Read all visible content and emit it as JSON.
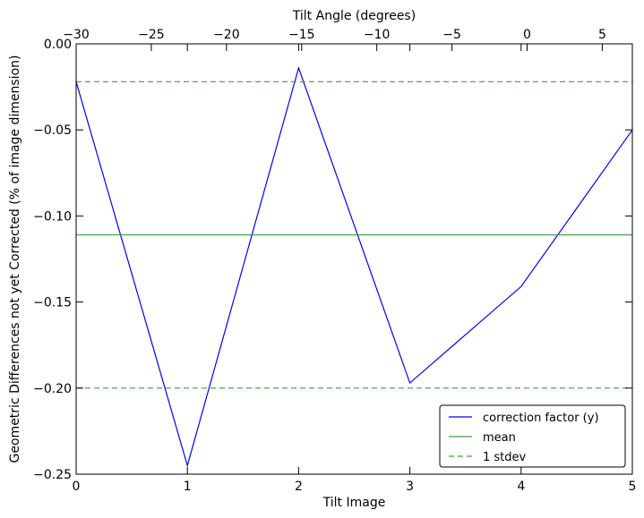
{
  "chart_data": {
    "type": "line",
    "title": "",
    "xlabel": "Tilt Image",
    "x2label": "Tilt Angle (degrees)",
    "ylabel": "Geometric Differences not yet Corrected (% of image dimension)",
    "xlim": [
      0,
      5
    ],
    "ylim": [
      -0.25,
      0.0
    ],
    "x2lim": [
      -30,
      7
    ],
    "xticks": [
      0,
      1,
      2,
      3,
      4,
      5
    ],
    "xtick_labels": [
      "0",
      "1",
      "2",
      "3",
      "4",
      "5"
    ],
    "yticks": [
      0.0,
      -0.05,
      -0.1,
      -0.15,
      -0.2,
      -0.25
    ],
    "ytick_labels": [
      "0.00",
      "−0.05",
      "−0.10",
      "−0.15",
      "−0.20",
      "−0.25"
    ],
    "x2ticks": [
      -30,
      -25,
      -20,
      -15,
      -10,
      -5,
      0,
      5
    ],
    "x2tick_labels": [
      "−30",
      "−25",
      "−20",
      "−15",
      "−10",
      "−5",
      "0",
      "5"
    ],
    "grid": false,
    "legend_position": "lower-right",
    "series": [
      {
        "name": "correction factor (y)",
        "color": "#0000ff",
        "style": "solid",
        "x": [
          0,
          1,
          2,
          3,
          4,
          5
        ],
        "values": [
          -0.022,
          -0.245,
          -0.014,
          -0.197,
          -0.141,
          -0.05
        ]
      },
      {
        "name": "mean",
        "color": "#3a9f3a",
        "style": "solid",
        "x": [
          0,
          5
        ],
        "values": [
          -0.111,
          -0.111
        ]
      },
      {
        "name": "1 stdev",
        "color": "#3a9f3a",
        "style": "dashed",
        "x": [
          0,
          5
        ],
        "values": [
          -0.022,
          -0.022
        ]
      }
    ],
    "extra_lines": [
      {
        "series_ref": "1 stdev",
        "color": "#3a9f3a",
        "style": "dashed",
        "x": [
          0,
          5
        ],
        "values": [
          -0.2,
          -0.2
        ]
      }
    ]
  }
}
